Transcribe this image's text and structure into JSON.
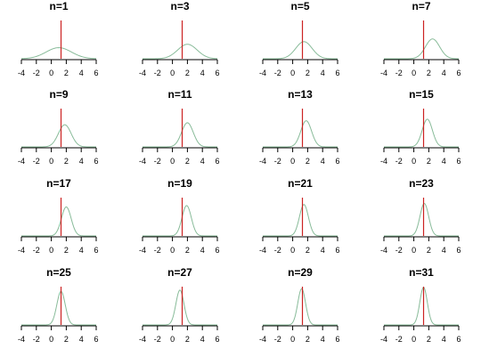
{
  "chart_data": {
    "type": "line",
    "x_ticks": [
      -4,
      -2,
      0,
      2,
      4,
      6
    ],
    "xlim": [
      -4,
      6
    ],
    "grid": false,
    "vertical_line_x": 1.3,
    "colors": {
      "curve": "#88bb99",
      "vline": "#cc2222",
      "axis": "#000000"
    },
    "panels": [
      {
        "title": "n=1",
        "center": 1.0,
        "sd": 1.7
      },
      {
        "title": "n=3",
        "center": 2.0,
        "sd": 1.3
      },
      {
        "title": "n=5",
        "center": 1.5,
        "sd": 1.1
      },
      {
        "title": "n=7",
        "center": 2.5,
        "sd": 0.95
      },
      {
        "title": "n=9",
        "center": 1.8,
        "sd": 0.85
      },
      {
        "title": "n=11",
        "center": 2.0,
        "sd": 0.78
      },
      {
        "title": "n=13",
        "center": 1.8,
        "sd": 0.72
      },
      {
        "title": "n=15",
        "center": 1.8,
        "sd": 0.68
      },
      {
        "title": "n=17",
        "center": 2.0,
        "sd": 0.65
      },
      {
        "title": "n=19",
        "center": 1.9,
        "sd": 0.62
      },
      {
        "title": "n=21",
        "center": 1.5,
        "sd": 0.6
      },
      {
        "title": "n=23",
        "center": 1.4,
        "sd": 0.58
      },
      {
        "title": "n=25",
        "center": 1.3,
        "sd": 0.56
      },
      {
        "title": "n=27",
        "center": 1.0,
        "sd": 0.54
      },
      {
        "title": "n=29",
        "center": 1.2,
        "sd": 0.52
      },
      {
        "title": "n=31",
        "center": 1.3,
        "sd": 0.5
      }
    ]
  }
}
